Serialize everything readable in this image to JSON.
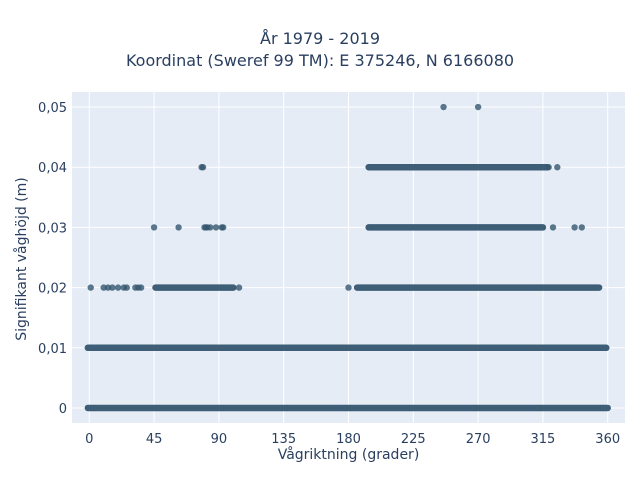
{
  "chart_data": {
    "type": "scatter",
    "title": [
      "År 1979 - 2019",
      "Koordinat (Sweref 99 TM): E 375246, N 6166080"
    ],
    "xlabel": "Vågriktning (grader)",
    "ylabel": "Signifikant våghöjd (m)",
    "xlim": [
      -12,
      372
    ],
    "ylim": [
      -0.0025,
      0.0525
    ],
    "x_ticks": [
      0,
      45,
      90,
      135,
      180,
      225,
      270,
      315,
      360
    ],
    "x_tick_labels": [
      "0",
      "45",
      "90",
      "135",
      "180",
      "225",
      "270",
      "315",
      "360"
    ],
    "y_ticks": [
      0,
      0.01,
      0.02,
      0.03,
      0.04,
      0.05
    ],
    "y_tick_labels": [
      "0",
      "0,01",
      "0,02",
      "0,03",
      "0,04",
      "0,05"
    ],
    "grid": true,
    "marker_color": "#34566f",
    "plot_bg": "#e5ecf6",
    "series": [
      {
        "points": [
          {
            "y": 0.05,
            "x": [
              246,
              270
            ]
          },
          {
            "y": 0.04,
            "x": [
              78,
              79
            ],
            "ranges": [
              [
                194,
                318
              ]
            ],
            "extra": [
              319,
              325
            ]
          },
          {
            "y": 0.03,
            "x": [
              45,
              62,
              80,
              81,
              82,
              84,
              88,
              92,
              93,
              322,
              337,
              342
            ],
            "ranges": [
              [
                194,
                315
              ]
            ]
          },
          {
            "y": 0.02,
            "x": [
              1,
              10,
              13,
              16,
              20,
              24,
              26,
              32,
              34,
              36,
              104,
              180
            ],
            "ranges": [
              [
                46,
                100
              ],
              [
                186,
                354
              ]
            ]
          },
          {
            "y": 0.01,
            "ranges": [
              [
                -1,
                359
              ]
            ]
          },
          {
            "y": 0,
            "ranges": [
              [
                -1,
                360
              ]
            ]
          }
        ]
      }
    ]
  }
}
